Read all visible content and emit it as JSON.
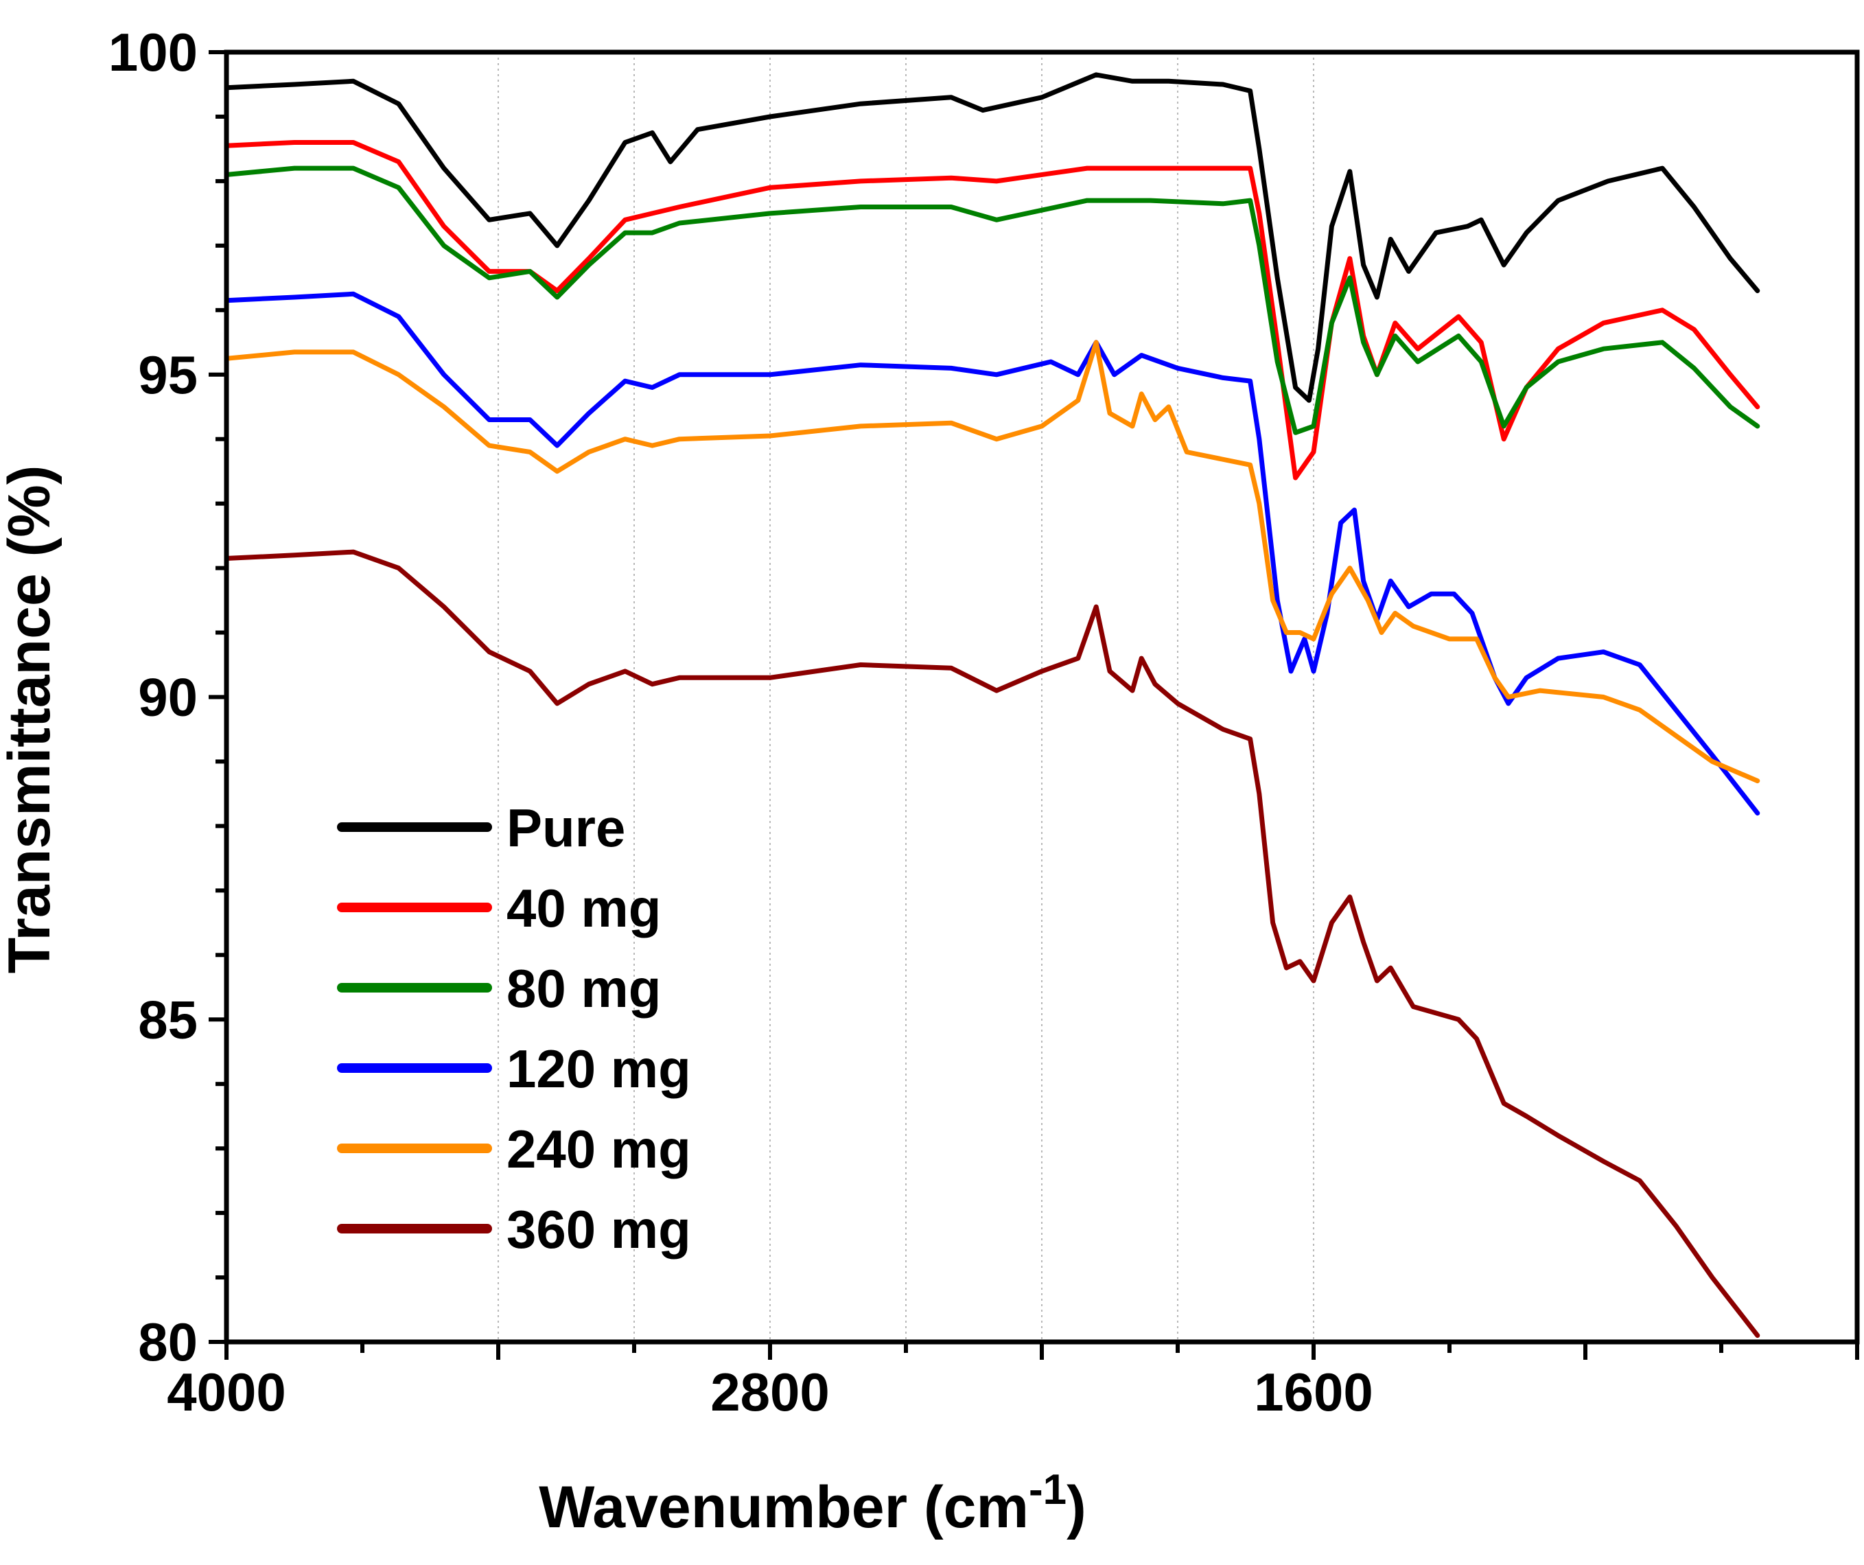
{
  "chart_data": {
    "type": "line",
    "title": "",
    "xlabel": "Wavenumber (cm",
    "xlabel_sup": "-1",
    "xlabel_close": ")",
    "ylabel": "Transmittance (%)",
    "xlim": [
      4000,
      400
    ],
    "ylim": [
      80,
      100
    ],
    "x_ticks": [
      4000,
      2800,
      1600
    ],
    "y_ticks": [
      100,
      95,
      90,
      85,
      80
    ],
    "grid_x_lines": [
      3400,
      3100,
      2800,
      2500,
      2200,
      1900,
      1600
    ],
    "grid": true,
    "legend_position": "lower-left",
    "series": [
      {
        "name": "Pure",
        "color": "#000000",
        "points": [
          [
            4000,
            99.45
          ],
          [
            3850,
            99.5
          ],
          [
            3720,
            99.55
          ],
          [
            3620,
            99.2
          ],
          [
            3520,
            98.2
          ],
          [
            3420,
            97.4
          ],
          [
            3330,
            97.5
          ],
          [
            3270,
            97.0
          ],
          [
            3200,
            97.7
          ],
          [
            3120,
            98.6
          ],
          [
            3060,
            98.75
          ],
          [
            3020,
            98.3
          ],
          [
            2960,
            98.8
          ],
          [
            2800,
            99.0
          ],
          [
            2600,
            99.2
          ],
          [
            2400,
            99.3
          ],
          [
            2330,
            99.1
          ],
          [
            2200,
            99.3
          ],
          [
            2080,
            99.65
          ],
          [
            2000,
            99.55
          ],
          [
            1920,
            99.55
          ],
          [
            1800,
            99.5
          ],
          [
            1740,
            99.4
          ],
          [
            1720,
            98.5
          ],
          [
            1680,
            96.5
          ],
          [
            1640,
            94.8
          ],
          [
            1610,
            94.6
          ],
          [
            1590,
            95.4
          ],
          [
            1560,
            97.3
          ],
          [
            1520,
            98.15
          ],
          [
            1490,
            96.7
          ],
          [
            1460,
            96.2
          ],
          [
            1430,
            97.1
          ],
          [
            1390,
            96.6
          ],
          [
            1330,
            97.2
          ],
          [
            1260,
            97.3
          ],
          [
            1230,
            97.4
          ],
          [
            1180,
            96.7
          ],
          [
            1130,
            97.2
          ],
          [
            1060,
            97.7
          ],
          [
            950,
            98.0
          ],
          [
            830,
            98.2
          ],
          [
            760,
            97.6
          ],
          [
            680,
            96.8
          ],
          [
            620,
            96.3
          ]
        ]
      },
      {
        "name": "40 mg",
        "color": "#ff0000",
        "points": [
          [
            4000,
            98.55
          ],
          [
            3850,
            98.6
          ],
          [
            3720,
            98.6
          ],
          [
            3620,
            98.3
          ],
          [
            3520,
            97.3
          ],
          [
            3420,
            96.6
          ],
          [
            3330,
            96.6
          ],
          [
            3270,
            96.3
          ],
          [
            3200,
            96.8
          ],
          [
            3120,
            97.4
          ],
          [
            3060,
            97.5
          ],
          [
            3000,
            97.6
          ],
          [
            2800,
            97.9
          ],
          [
            2600,
            98.0
          ],
          [
            2400,
            98.05
          ],
          [
            2300,
            98.0
          ],
          [
            2100,
            98.2
          ],
          [
            1960,
            98.2
          ],
          [
            1800,
            98.2
          ],
          [
            1740,
            98.2
          ],
          [
            1720,
            97.5
          ],
          [
            1680,
            95.5
          ],
          [
            1640,
            93.4
          ],
          [
            1600,
            93.8
          ],
          [
            1560,
            95.8
          ],
          [
            1520,
            96.8
          ],
          [
            1490,
            95.6
          ],
          [
            1460,
            95.0
          ],
          [
            1420,
            95.8
          ],
          [
            1370,
            95.4
          ],
          [
            1280,
            95.9
          ],
          [
            1230,
            95.5
          ],
          [
            1180,
            94.0
          ],
          [
            1130,
            94.8
          ],
          [
            1060,
            95.4
          ],
          [
            960,
            95.8
          ],
          [
            830,
            96.0
          ],
          [
            760,
            95.7
          ],
          [
            680,
            95.0
          ],
          [
            620,
            94.5
          ]
        ]
      },
      {
        "name": "80 mg",
        "color": "#008000",
        "points": [
          [
            4000,
            98.1
          ],
          [
            3850,
            98.2
          ],
          [
            3720,
            98.2
          ],
          [
            3620,
            97.9
          ],
          [
            3520,
            97.0
          ],
          [
            3420,
            96.5
          ],
          [
            3330,
            96.6
          ],
          [
            3270,
            96.2
          ],
          [
            3200,
            96.7
          ],
          [
            3120,
            97.2
          ],
          [
            3060,
            97.2
          ],
          [
            3000,
            97.35
          ],
          [
            2800,
            97.5
          ],
          [
            2600,
            97.6
          ],
          [
            2400,
            97.6
          ],
          [
            2300,
            97.4
          ],
          [
            2100,
            97.7
          ],
          [
            1960,
            97.7
          ],
          [
            1800,
            97.65
          ],
          [
            1740,
            97.7
          ],
          [
            1720,
            97.0
          ],
          [
            1680,
            95.2
          ],
          [
            1640,
            94.1
          ],
          [
            1600,
            94.2
          ],
          [
            1560,
            95.8
          ],
          [
            1520,
            96.5
          ],
          [
            1490,
            95.5
          ],
          [
            1460,
            95.0
          ],
          [
            1420,
            95.6
          ],
          [
            1370,
            95.2
          ],
          [
            1280,
            95.6
          ],
          [
            1230,
            95.2
          ],
          [
            1180,
            94.2
          ],
          [
            1130,
            94.8
          ],
          [
            1060,
            95.2
          ],
          [
            960,
            95.4
          ],
          [
            830,
            95.5
          ],
          [
            760,
            95.1
          ],
          [
            680,
            94.5
          ],
          [
            620,
            94.2
          ]
        ]
      },
      {
        "name": "120 mg",
        "color": "#0000ff",
        "points": [
          [
            4000,
            96.15
          ],
          [
            3850,
            96.2
          ],
          [
            3720,
            96.25
          ],
          [
            3620,
            95.9
          ],
          [
            3520,
            95.0
          ],
          [
            3420,
            94.3
          ],
          [
            3330,
            94.3
          ],
          [
            3270,
            93.9
          ],
          [
            3200,
            94.4
          ],
          [
            3120,
            94.9
          ],
          [
            3060,
            94.8
          ],
          [
            3000,
            95.0
          ],
          [
            2800,
            95.0
          ],
          [
            2600,
            95.15
          ],
          [
            2400,
            95.1
          ],
          [
            2300,
            95.0
          ],
          [
            2180,
            95.2
          ],
          [
            2120,
            95.0
          ],
          [
            2080,
            95.5
          ],
          [
            2040,
            95.0
          ],
          [
            1980,
            95.3
          ],
          [
            1900,
            95.1
          ],
          [
            1800,
            94.95
          ],
          [
            1740,
            94.9
          ],
          [
            1720,
            94.0
          ],
          [
            1680,
            91.5
          ],
          [
            1650,
            90.4
          ],
          [
            1620,
            90.9
          ],
          [
            1600,
            90.4
          ],
          [
            1570,
            91.3
          ],
          [
            1540,
            92.7
          ],
          [
            1510,
            92.9
          ],
          [
            1490,
            91.8
          ],
          [
            1460,
            91.2
          ],
          [
            1430,
            91.8
          ],
          [
            1390,
            91.4
          ],
          [
            1340,
            91.6
          ],
          [
            1290,
            91.6
          ],
          [
            1250,
            91.3
          ],
          [
            1200,
            90.3
          ],
          [
            1170,
            89.9
          ],
          [
            1130,
            90.3
          ],
          [
            1060,
            90.6
          ],
          [
            960,
            90.7
          ],
          [
            880,
            90.5
          ],
          [
            800,
            89.8
          ],
          [
            720,
            89.1
          ],
          [
            620,
            88.2
          ]
        ]
      },
      {
        "name": "240 mg",
        "color": "#ff8c00",
        "points": [
          [
            4000,
            95.25
          ],
          [
            3850,
            95.35
          ],
          [
            3720,
            95.35
          ],
          [
            3620,
            95.0
          ],
          [
            3520,
            94.5
          ],
          [
            3420,
            93.9
          ],
          [
            3330,
            93.8
          ],
          [
            3270,
            93.5
          ],
          [
            3200,
            93.8
          ],
          [
            3120,
            94.0
          ],
          [
            3060,
            93.9
          ],
          [
            3000,
            94.0
          ],
          [
            2800,
            94.05
          ],
          [
            2600,
            94.2
          ],
          [
            2400,
            94.25
          ],
          [
            2300,
            94.0
          ],
          [
            2200,
            94.2
          ],
          [
            2120,
            94.6
          ],
          [
            2080,
            95.5
          ],
          [
            2050,
            94.4
          ],
          [
            2000,
            94.2
          ],
          [
            1980,
            94.7
          ],
          [
            1950,
            94.3
          ],
          [
            1920,
            94.5
          ],
          [
            1880,
            93.8
          ],
          [
            1740,
            93.6
          ],
          [
            1720,
            93.0
          ],
          [
            1690,
            91.5
          ],
          [
            1660,
            91.0
          ],
          [
            1630,
            91.0
          ],
          [
            1600,
            90.9
          ],
          [
            1560,
            91.6
          ],
          [
            1520,
            92.0
          ],
          [
            1480,
            91.5
          ],
          [
            1450,
            91.0
          ],
          [
            1420,
            91.3
          ],
          [
            1380,
            91.1
          ],
          [
            1300,
            90.9
          ],
          [
            1240,
            90.9
          ],
          [
            1200,
            90.3
          ],
          [
            1170,
            90.0
          ],
          [
            1100,
            90.1
          ],
          [
            960,
            90.0
          ],
          [
            880,
            89.8
          ],
          [
            800,
            89.4
          ],
          [
            720,
            89.0
          ],
          [
            620,
            88.7
          ]
        ]
      },
      {
        "name": "360 mg",
        "color": "#8b0000",
        "points": [
          [
            4000,
            92.15
          ],
          [
            3850,
            92.2
          ],
          [
            3720,
            92.25
          ],
          [
            3620,
            92.0
          ],
          [
            3520,
            91.4
          ],
          [
            3420,
            90.7
          ],
          [
            3330,
            90.4
          ],
          [
            3270,
            89.9
          ],
          [
            3200,
            90.2
          ],
          [
            3120,
            90.4
          ],
          [
            3060,
            90.2
          ],
          [
            3000,
            90.3
          ],
          [
            2800,
            90.3
          ],
          [
            2600,
            90.5
          ],
          [
            2400,
            90.45
          ],
          [
            2300,
            90.1
          ],
          [
            2200,
            90.4
          ],
          [
            2120,
            90.6
          ],
          [
            2080,
            91.4
          ],
          [
            2050,
            90.4
          ],
          [
            2000,
            90.1
          ],
          [
            1980,
            90.6
          ],
          [
            1950,
            90.2
          ],
          [
            1900,
            89.9
          ],
          [
            1800,
            89.5
          ],
          [
            1740,
            89.35
          ],
          [
            1720,
            88.5
          ],
          [
            1690,
            86.5
          ],
          [
            1660,
            85.8
          ],
          [
            1630,
            85.9
          ],
          [
            1600,
            85.6
          ],
          [
            1560,
            86.5
          ],
          [
            1520,
            86.9
          ],
          [
            1490,
            86.2
          ],
          [
            1460,
            85.6
          ],
          [
            1430,
            85.8
          ],
          [
            1380,
            85.2
          ],
          [
            1280,
            85.0
          ],
          [
            1240,
            84.7
          ],
          [
            1180,
            83.7
          ],
          [
            1130,
            83.5
          ],
          [
            1060,
            83.2
          ],
          [
            960,
            82.8
          ],
          [
            880,
            82.5
          ],
          [
            800,
            81.8
          ],
          [
            720,
            81.0
          ],
          [
            620,
            80.1
          ]
        ]
      }
    ]
  }
}
